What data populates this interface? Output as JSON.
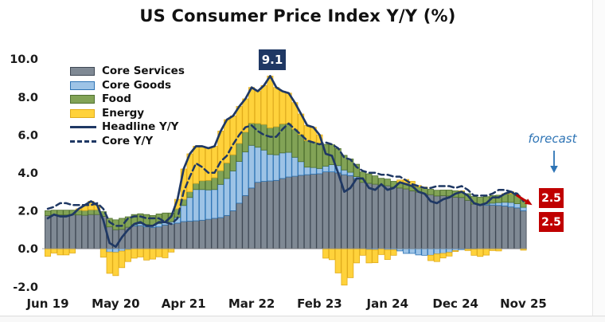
{
  "title": "US Consumer Price Index Y/Y (%)",
  "annotations": {
    "peak_label": "9.1",
    "forecast_label": "forecast",
    "headline_forecast": "2.5",
    "core_forecast": "2.5"
  },
  "colors": {
    "navy": "#1f3864",
    "forecast_red": "#c00000",
    "forecast_blue": "#2e74b5",
    "axis_text": "#1a1a1a",
    "background": "#ffffff"
  },
  "chart_data": {
    "type": "bar",
    "subtype": "stacked-bars-with-lines",
    "bar_unit": "percentage-point contribution to headline CPI Y/Y",
    "frequency": "monthly",
    "stack_order": [
      "Core Services",
      "Core Goods",
      "Food",
      "Energy"
    ],
    "grid": "off",
    "legend_position": "top-left-inside",
    "forecast_start_index": 76,
    "y_axis": {
      "ticks": [
        {
          "value": 10,
          "label": "10.0"
        },
        {
          "value": 8,
          "label": "8.0"
        },
        {
          "value": 6,
          "label": "6.0"
        },
        {
          "value": 4,
          "label": "4.0"
        },
        {
          "value": 2,
          "label": "2.0"
        },
        {
          "value": 0,
          "label": "0.0"
        },
        {
          "value": -2,
          "label": "-2.0"
        }
      ],
      "range": [
        -2.0,
        10.0
      ]
    },
    "x_axis": {
      "ticks": [
        {
          "index": 0,
          "label": "Jun 19"
        },
        {
          "index": 11,
          "label": "May 20"
        },
        {
          "index": 22,
          "label": "Apr 21"
        },
        {
          "index": 33,
          "label": "Mar 22"
        },
        {
          "index": 44,
          "label": "Feb 23"
        },
        {
          "index": 55,
          "label": "Jan 24"
        },
        {
          "index": 66,
          "label": "Dec 24"
        },
        {
          "index": 77,
          "label": "Nov 25"
        }
      ],
      "start": "Jun 2019",
      "end": "Nov 2025 (forecast)"
    },
    "months": [
      "Jun 19",
      "Jul 19",
      "Aug 19",
      "Sep 19",
      "Oct 19",
      "Nov 19",
      "Dec 19",
      "Jan 20",
      "Feb 20",
      "Mar 20",
      "Apr 20",
      "May 20",
      "Jun 20",
      "Jul 20",
      "Aug 20",
      "Sep 20",
      "Oct 20",
      "Nov 20",
      "Dec 20",
      "Jan 21",
      "Feb 21",
      "Mar 21",
      "Apr 21",
      "May 21",
      "Jun 21",
      "Jul 21",
      "Aug 21",
      "Sep 21",
      "Oct 21",
      "Nov 21",
      "Dec 21",
      "Jan 22",
      "Feb 22",
      "Mar 22",
      "Apr 22",
      "May 22",
      "Jun 22",
      "Jul 22",
      "Aug 22",
      "Sep 22",
      "Oct 22",
      "Nov 22",
      "Dec 22",
      "Jan 23",
      "Feb 23",
      "Mar 23",
      "Apr 23",
      "May 23",
      "Jun 23",
      "Jul 23",
      "Aug 23",
      "Sep 23",
      "Oct 23",
      "Nov 23",
      "Dec 23",
      "Jan 24",
      "Feb 24",
      "Mar 24",
      "Apr 24",
      "May 24",
      "Jun 24",
      "Jul 24",
      "Aug 24",
      "Sep 24",
      "Oct 24",
      "Nov 24",
      "Dec 24",
      "Jan 25",
      "Feb 25",
      "Mar 25",
      "Apr 25",
      "May 25",
      "Jun 25",
      "Jul 25",
      "Aug 25",
      "Sep 25",
      "Oct 25",
      "Nov 25"
    ],
    "series": [
      {
        "name": "Core Services",
        "type": "bar",
        "color": "#7f8994",
        "border": "#3f4854",
        "values": [
          1.75,
          1.78,
          1.78,
          1.78,
          1.78,
          1.78,
          1.76,
          1.8,
          1.8,
          1.7,
          1.15,
          1.0,
          1.02,
          1.13,
          1.2,
          1.22,
          1.15,
          1.12,
          1.15,
          1.25,
          1.3,
          1.35,
          1.43,
          1.45,
          1.47,
          1.5,
          1.55,
          1.6,
          1.64,
          1.75,
          2.0,
          2.4,
          2.8,
          3.2,
          3.5,
          3.55,
          3.57,
          3.6,
          3.7,
          3.78,
          3.82,
          3.87,
          3.9,
          3.93,
          3.95,
          4.05,
          4.05,
          4.0,
          3.9,
          3.85,
          3.7,
          3.5,
          3.45,
          3.4,
          3.35,
          3.32,
          3.25,
          3.2,
          3.15,
          3.05,
          2.98,
          2.9,
          2.85,
          2.78,
          2.8,
          2.78,
          2.72,
          2.7,
          2.55,
          2.35,
          2.3,
          2.3,
          2.3,
          2.28,
          2.25,
          2.2,
          2.15,
          2.0
        ]
      },
      {
        "name": "Core Goods",
        "type": "bar",
        "color": "#9dc3e6",
        "border": "#2e74b5",
        "values": [
          0,
          0,
          0,
          0,
          0,
          0,
          0,
          0,
          0,
          0,
          -0.18,
          -0.2,
          -0.13,
          -0.05,
          0.06,
          0.1,
          0.13,
          0.13,
          0.18,
          0.15,
          0.12,
          0.3,
          0.85,
          1.25,
          1.65,
          1.62,
          1.55,
          1.52,
          1.75,
          1.95,
          2.1,
          2.2,
          2.3,
          2.25,
          1.85,
          1.65,
          1.4,
          1.35,
          1.35,
          1.3,
          1.0,
          0.72,
          0.4,
          0.35,
          0.28,
          0.3,
          0.38,
          0.38,
          0.25,
          0.18,
          0.1,
          0.0,
          -0.05,
          -0.06,
          0.0,
          -0.06,
          -0.06,
          -0.12,
          -0.25,
          -0.25,
          -0.33,
          -0.35,
          -0.35,
          -0.28,
          -0.25,
          -0.2,
          -0.1,
          -0.05,
          -0.02,
          -0.02,
          0.03,
          0.05,
          0.1,
          0.15,
          0.2,
          0.24,
          0.22,
          0.18
        ]
      },
      {
        "name": "Food",
        "type": "bar",
        "color": "#82a356",
        "border": "#4f7030",
        "values": [
          0.25,
          0.25,
          0.25,
          0.25,
          0.25,
          0.25,
          0.25,
          0.25,
          0.25,
          0.25,
          0.45,
          0.52,
          0.58,
          0.55,
          0.54,
          0.52,
          0.52,
          0.5,
          0.5,
          0.48,
          0.46,
          0.45,
          0.32,
          0.3,
          0.32,
          0.46,
          0.5,
          0.62,
          0.72,
          0.82,
          0.85,
          0.95,
          1.05,
          1.17,
          1.25,
          1.35,
          1.4,
          1.48,
          1.53,
          1.52,
          1.48,
          1.43,
          1.4,
          1.35,
          1.3,
          1.15,
          1.05,
          0.9,
          0.77,
          0.7,
          0.65,
          0.55,
          0.5,
          0.44,
          0.36,
          0.35,
          0.3,
          0.3,
          0.3,
          0.28,
          0.28,
          0.29,
          0.28,
          0.3,
          0.29,
          0.31,
          0.33,
          0.34,
          0.35,
          0.4,
          0.38,
          0.39,
          0.4,
          0.39,
          0.43,
          0.45,
          0.43,
          0.4
        ]
      },
      {
        "name": "Energy",
        "type": "bar",
        "color": "#ffd23b",
        "border": "#e0ac1c",
        "values": [
          -0.4,
          -0.23,
          -0.33,
          -0.33,
          -0.23,
          0.07,
          0.29,
          0.45,
          0.25,
          -0.45,
          -1.12,
          -1.22,
          -0.87,
          -0.63,
          -0.5,
          -0.44,
          -0.6,
          -0.55,
          -0.43,
          -0.48,
          -0.18,
          0.5,
          1.6,
          2.0,
          1.96,
          1.82,
          1.7,
          1.66,
          2.09,
          2.28,
          2.05,
          1.95,
          1.75,
          1.88,
          1.7,
          2.05,
          2.73,
          2.07,
          1.72,
          1.6,
          1.4,
          1.08,
          0.8,
          0.77,
          0.47,
          -0.5,
          -0.58,
          -1.28,
          -1.92,
          -1.53,
          -0.75,
          -0.35,
          -0.7,
          -0.68,
          -0.31,
          -0.51,
          -0.29,
          0.12,
          0.2,
          0.22,
          0.07,
          0.06,
          -0.28,
          -0.4,
          -0.24,
          -0.19,
          -0.05,
          0.01,
          -0.08,
          -0.33,
          -0.41,
          -0.34,
          -0.1,
          -0.12,
          0.02,
          0.11,
          0.0,
          -0.08
        ]
      },
      {
        "name": "Headline Y/Y",
        "type": "line",
        "style": "solid",
        "color": "#1f3864",
        "values": [
          1.6,
          1.8,
          1.7,
          1.7,
          1.8,
          2.1,
          2.3,
          2.5,
          2.3,
          1.5,
          0.3,
          0.1,
          0.6,
          1.0,
          1.3,
          1.4,
          1.2,
          1.2,
          1.4,
          1.4,
          1.7,
          2.6,
          4.2,
          5.0,
          5.4,
          5.4,
          5.3,
          5.4,
          6.2,
          6.8,
          7.0,
          7.5,
          7.9,
          8.5,
          8.3,
          8.6,
          9.1,
          8.5,
          8.3,
          8.2,
          7.7,
          7.1,
          6.5,
          6.4,
          6.0,
          5.0,
          4.9,
          4.0,
          3.0,
          3.2,
          3.7,
          3.7,
          3.2,
          3.1,
          3.4,
          3.1,
          3.2,
          3.5,
          3.4,
          3.3,
          3.0,
          2.9,
          2.5,
          2.4,
          2.6,
          2.7,
          2.9,
          3.0,
          2.8,
          2.4,
          2.3,
          2.4,
          2.7,
          2.7,
          2.9,
          3.0,
          2.8,
          2.5
        ]
      },
      {
        "name": "Core Y/Y",
        "type": "line",
        "style": "dashed",
        "color": "#1f3864",
        "values": [
          2.1,
          2.2,
          2.4,
          2.4,
          2.3,
          2.3,
          2.3,
          2.3,
          2.4,
          2.1,
          1.4,
          1.2,
          1.2,
          1.6,
          1.7,
          1.7,
          1.6,
          1.6,
          1.6,
          1.4,
          1.3,
          1.6,
          3.0,
          3.8,
          4.5,
          4.3,
          4.0,
          4.0,
          4.6,
          4.9,
          5.5,
          6.0,
          6.4,
          6.5,
          6.2,
          6.0,
          5.9,
          5.9,
          6.3,
          6.6,
          6.3,
          6.0,
          5.7,
          5.6,
          5.5,
          5.6,
          5.5,
          5.3,
          4.8,
          4.7,
          4.3,
          4.1,
          4.0,
          4.0,
          3.9,
          3.9,
          3.8,
          3.8,
          3.6,
          3.4,
          3.3,
          3.2,
          3.2,
          3.3,
          3.3,
          3.3,
          3.2,
          3.3,
          3.1,
          2.8,
          2.8,
          2.8,
          2.9,
          3.1,
          3.1,
          3.0,
          2.9,
          2.5
        ]
      }
    ]
  }
}
